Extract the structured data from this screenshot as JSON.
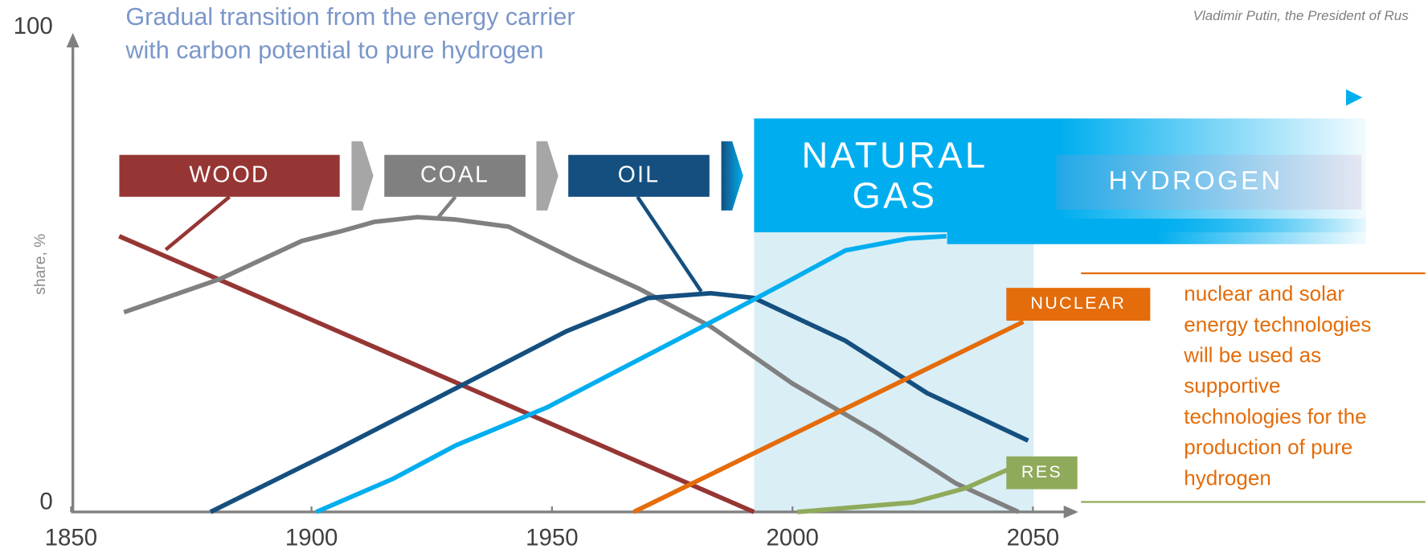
{
  "chart_data": {
    "type": "line",
    "title": [
      "Gradual transition from the energy carrier",
      "with carbon potential to pure hydrogen"
    ],
    "quote": "Vladimir Putin, the President of Rus",
    "y_label": "share, %",
    "band_label": "HYDROGEN",
    "annotation": [
      "nuclear and solar",
      "energy technologies",
      "will be used as",
      "supportive",
      "technologies for the",
      "production of pure",
      "hydrogen"
    ],
    "xlim": [
      1850,
      2060
    ],
    "ylim": [
      0,
      100
    ],
    "xticks": [
      1850,
      1900,
      1950,
      2000,
      2050
    ],
    "yticks": [
      0,
      100
    ],
    "series": [
      {
        "name": "WOOD",
        "color": "#963634",
        "x": [
          1860,
          1992
        ],
        "values": [
          58,
          0
        ]
      },
      {
        "name": "COAL",
        "color": "#808080",
        "x": [
          1861,
          1881,
          1898,
          1906,
          1913,
          1922,
          1930,
          1941,
          1955,
          1968,
          1983,
          2000,
          2017,
          2034,
          2047
        ],
        "values": [
          42,
          49,
          57,
          59,
          61,
          62,
          61.5,
          60,
          53,
          47,
          39,
          27,
          17,
          6,
          0
        ]
      },
      {
        "name": "OIL",
        "color": "#144f7f",
        "x": [
          1879,
          1905,
          1930,
          1953,
          1970,
          1983,
          1992,
          2011,
          2028,
          2049
        ],
        "values": [
          0,
          13,
          26,
          38,
          45,
          46,
          45,
          36,
          25,
          15
        ]
      },
      {
        "name": "NATURAL GAS",
        "color": "#00aeef",
        "x": [
          1901,
          1917,
          1930,
          1949,
          1968,
          1987,
          2000,
          2011,
          2024,
          2032
        ],
        "values": [
          0,
          7,
          14,
          22,
          32,
          42,
          49,
          55,
          57.5,
          58
        ]
      },
      {
        "name": "NUCLEAR",
        "color": "#e46c0a",
        "x": [
          1967,
          2048
        ],
        "values": [
          0,
          40
        ]
      },
      {
        "name": "RES",
        "color": "#8faa5a",
        "x": [
          2001,
          2025,
          2036,
          2045
        ],
        "values": [
          0,
          2,
          5,
          9
        ]
      }
    ]
  }
}
